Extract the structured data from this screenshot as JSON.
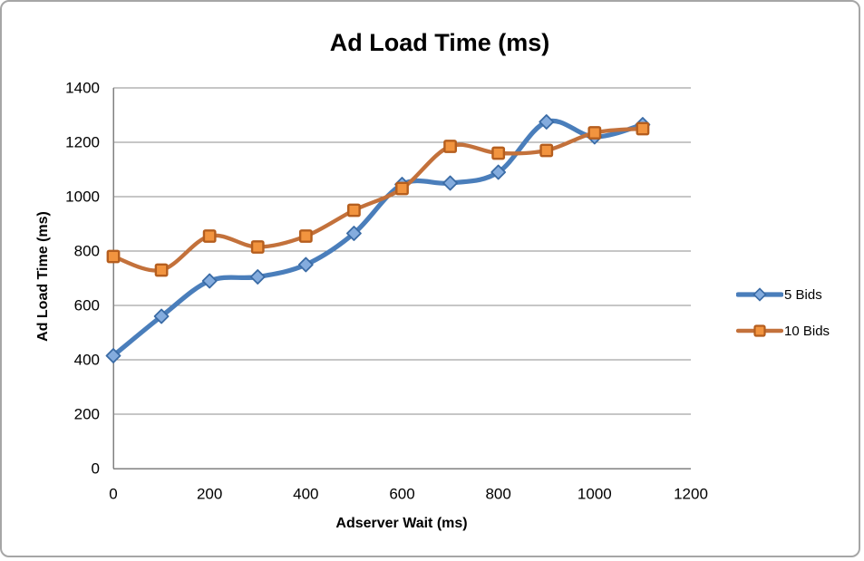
{
  "chart_data": {
    "type": "line",
    "title": "Ad Load Time (ms)",
    "xlabel": "Adserver Wait (ms)",
    "ylabel": "Ad Load Time (ms)",
    "x": [
      0,
      100,
      200,
      300,
      400,
      500,
      600,
      700,
      800,
      900,
      1000,
      1100
    ],
    "series": [
      {
        "name": "5 Bids",
        "values": [
          415,
          560,
          690,
          705,
          750,
          865,
          1045,
          1050,
          1090,
          1275,
          1220,
          1265
        ],
        "line_color": "#4A7EBB",
        "line_width": 5.2,
        "marker": "diamond",
        "marker_fill": "#84ACDE",
        "marker_stroke": "#3A6BA5"
      },
      {
        "name": "10 Bids",
        "values": [
          780,
          730,
          855,
          815,
          855,
          950,
          1030,
          1185,
          1160,
          1170,
          1235,
          1250
        ],
        "line_color": "#C3713B",
        "line_width": 4.4,
        "marker": "square",
        "marker_fill": "#F2943F",
        "marker_stroke": "#B55E1E"
      }
    ],
    "xlim": [
      0,
      1200
    ],
    "ylim": [
      0,
      1400
    ],
    "x_ticks": [
      0,
      200,
      400,
      600,
      800,
      1000,
      1200
    ],
    "y_ticks": [
      0,
      200,
      400,
      600,
      800,
      1000,
      1200,
      1400
    ],
    "grid": true,
    "smooth_lines": true,
    "legend_position": "right",
    "colors": {
      "gridline": "#8C8C8C",
      "axis": "#808080",
      "tick_text": "#000000",
      "frame_border": "#A6A6A6",
      "background": "#FFFFFF"
    }
  }
}
